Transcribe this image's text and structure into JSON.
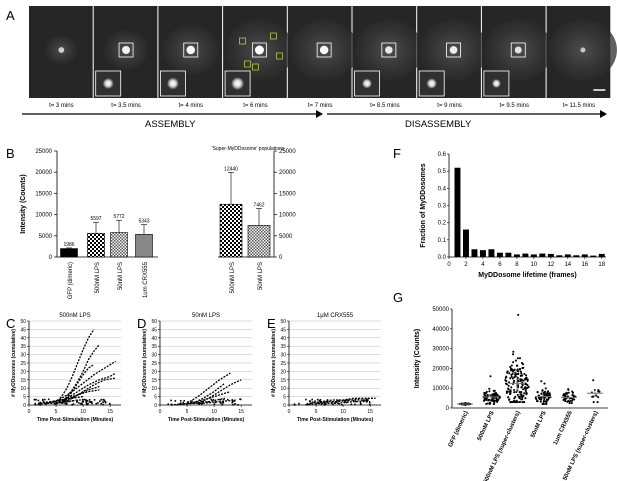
{
  "panel_labels": {
    "A": "A",
    "B": "B",
    "C": "C",
    "D": "D",
    "E": "E",
    "F": "F",
    "G": "G"
  },
  "panel_a": {
    "frames": [
      {
        "time": "t= 3 mins",
        "inset": false,
        "spot": 0.35
      },
      {
        "time": "t= 3.5 mins",
        "inset": true,
        "spot": 0.8
      },
      {
        "time": "t= 4 mins",
        "inset": true,
        "spot": 0.9
      },
      {
        "time": "t= 6 mins",
        "inset": true,
        "spot": 1.0
      },
      {
        "time": "t= 7 mins",
        "inset": false,
        "spot": 0.9
      },
      {
        "time": "t= 8.5 mins",
        "inset": true,
        "spot": 0.7
      },
      {
        "time": "t= 9 mins",
        "inset": true,
        "spot": 0.75
      },
      {
        "time": "t= 9.5 mins",
        "inset": true,
        "spot": 0.6
      },
      {
        "time": "t= 11.5 mins",
        "inset": false,
        "spot": 0.2
      }
    ],
    "assembly_label": "ASSEMBLY",
    "disassembly_label": "DISASSEMBLY"
  },
  "chart_data": [
    {
      "id": "B",
      "type": "bar",
      "ylabel": "Intensity (Counts)",
      "right_title": "'Super-MyDDosome' populations",
      "left": {
        "categories": [
          "GFP (dimeric)",
          "500nM LPS",
          "50nM LPS",
          "1um CRX555"
        ],
        "values": [
          1986,
          5597,
          5772,
          5343
        ],
        "errors": [
          150,
          2600,
          2900,
          2300
        ],
        "ylim": [
          0,
          25000
        ],
        "yticks": [
          0,
          5000,
          10000,
          15000,
          20000,
          25000
        ]
      },
      "right": {
        "categories": [
          "500nM LPS",
          "50nM LPS"
        ],
        "values": [
          12440,
          7462
        ],
        "errors": [
          7500,
          4000
        ],
        "ylim": [
          0,
          25000
        ],
        "yticks": [
          0,
          5000,
          10000,
          15000,
          20000,
          25000
        ]
      }
    },
    {
      "id": "C",
      "type": "line",
      "title": "500nM LPS",
      "xlabel": "Time Post-Stimulation (Minutes)",
      "ylabel": "# MyDDosomes (cumulative)",
      "xlim": [
        0,
        17
      ],
      "ylim": [
        0,
        50
      ],
      "xticks": [
        0,
        5,
        10,
        15
      ],
      "yticks": [
        0,
        5,
        10,
        15,
        20,
        25,
        30,
        35,
        40,
        45,
        50
      ],
      "series": [
        {
          "x": [
            5,
            6,
            7,
            8,
            9,
            10,
            11,
            12
          ],
          "y": [
            1,
            5,
            10,
            17,
            25,
            33,
            40,
            45
          ]
        },
        {
          "x": [
            6,
            7,
            8,
            9,
            10,
            11,
            12,
            13
          ],
          "y": [
            1,
            5,
            9,
            14,
            20,
            27,
            32,
            36
          ]
        },
        {
          "x": [
            4,
            6,
            8,
            10,
            12,
            14,
            16
          ],
          "y": [
            1,
            4,
            8,
            13,
            18,
            22,
            26
          ]
        },
        {
          "x": [
            6,
            7,
            8,
            9,
            10,
            11,
            12
          ],
          "y": [
            1,
            4,
            8,
            13,
            18,
            22,
            24
          ]
        },
        {
          "x": [
            5,
            7,
            9,
            11,
            13,
            15,
            16
          ],
          "y": [
            1,
            4,
            8,
            12,
            15,
            17,
            19
          ]
        },
        {
          "x": [
            6,
            8,
            10,
            12,
            14,
            16
          ],
          "y": [
            1,
            4,
            8,
            12,
            15,
            16
          ]
        },
        {
          "x": [
            5,
            7,
            9,
            11,
            13
          ],
          "y": [
            1,
            3,
            6,
            9,
            11
          ]
        },
        {
          "x": [
            3,
            5,
            7,
            9,
            11,
            13
          ],
          "y": [
            1,
            2,
            4,
            6,
            8,
            9
          ]
        },
        {
          "x": [
            2,
            4,
            6,
            8,
            10
          ],
          "y": [
            1,
            2,
            3,
            4,
            5
          ]
        },
        {
          "x": [
            1,
            3,
            5,
            7,
            9,
            11
          ],
          "y": [
            0,
            1,
            1,
            2,
            3,
            3
          ]
        }
      ]
    },
    {
      "id": "D",
      "type": "line",
      "title": "50nM LPS",
      "xlabel": "Time Post-Stimulation (Minutes)",
      "ylabel": "# MyDDosomes (cumulative)",
      "xlim": [
        0,
        17
      ],
      "ylim": [
        0,
        50
      ],
      "xticks": [
        0,
        5,
        10,
        15
      ],
      "yticks": [
        0,
        5,
        10,
        15,
        20,
        25,
        30,
        35,
        40,
        45,
        50
      ],
      "series": [
        {
          "x": [
            5,
            7,
            9,
            11,
            13
          ],
          "y": [
            1,
            5,
            10,
            15,
            19
          ]
        },
        {
          "x": [
            7,
            9,
            11,
            13,
            15
          ],
          "y": [
            1,
            4,
            8,
            12,
            15
          ]
        },
        {
          "x": [
            6,
            8,
            10,
            12
          ],
          "y": [
            1,
            4,
            8,
            13
          ]
        },
        {
          "x": [
            5,
            7,
            9,
            11,
            13
          ],
          "y": [
            1,
            2,
            4,
            6,
            8
          ]
        },
        {
          "x": [
            3,
            6,
            9,
            12
          ],
          "y": [
            0,
            1,
            2,
            4
          ]
        },
        {
          "x": [
            2,
            5,
            8,
            11,
            14
          ],
          "y": [
            0,
            1,
            1,
            2,
            3
          ]
        }
      ]
    },
    {
      "id": "E",
      "type": "line",
      "title": "1μM CRX555",
      "xlabel": "Time Post-Stimulation (Minutes)",
      "ylabel": "# MyDDosomes (cumulative)",
      "xlim": [
        0,
        17
      ],
      "ylim": [
        0,
        50
      ],
      "xticks": [
        0,
        5,
        10,
        15
      ],
      "yticks": [
        0,
        5,
        10,
        15,
        20,
        25,
        30,
        35,
        40,
        45,
        50
      ],
      "series": [
        {
          "x": [
            4,
            6,
            8,
            10,
            12,
            14,
            16
          ],
          "y": [
            1,
            2,
            3,
            3,
            4,
            4,
            4
          ]
        },
        {
          "x": [
            5,
            7,
            9,
            11,
            13,
            15
          ],
          "y": [
            1,
            2,
            2,
            3,
            3,
            3
          ]
        },
        {
          "x": [
            3,
            6,
            9,
            12,
            15
          ],
          "y": [
            0,
            1,
            1,
            2,
            2
          ]
        }
      ]
    },
    {
      "id": "F",
      "type": "bar",
      "xlabel": "MyDDosome lifetime (frames)",
      "ylabel": "Fraction of MyDDosomes",
      "xlim": [
        0,
        18.5
      ],
      "ylim": [
        0,
        0.6
      ],
      "xticks": [
        0,
        2,
        4,
        6,
        8,
        10,
        12,
        14,
        16,
        18
      ],
      "yticks": [
        0.0,
        0.1,
        0.2,
        0.3,
        0.4,
        0.5,
        0.6
      ],
      "x": [
        1,
        2,
        3,
        4,
        5,
        6,
        7,
        8,
        9,
        10,
        11,
        12,
        13,
        14,
        15,
        16,
        17,
        18
      ],
      "values": [
        0.52,
        0.16,
        0.045,
        0.04,
        0.045,
        0.025,
        0.025,
        0.015,
        0.02,
        0.015,
        0.02,
        0.018,
        0.01,
        0.015,
        0.01,
        0.015,
        0.008,
        0.018
      ]
    },
    {
      "id": "G",
      "type": "scatter",
      "ylabel": "Intensity (Counts)",
      "ylim": [
        0,
        50000
      ],
      "yticks": [
        0,
        10000,
        20000,
        30000,
        40000,
        50000
      ],
      "categories": [
        "GFP (dimeric)",
        "500nM LPS",
        "500nM LPS (super-clusters)",
        "50nM LPS",
        "1um CRX555",
        "50nM LPS (super-clusters)"
      ],
      "groups": [
        {
          "n": 30,
          "mean": 1986,
          "sd": 200,
          "min": 1500,
          "max": 2500
        },
        {
          "n": 80,
          "mean": 5597,
          "sd": 2500,
          "min": 2000,
          "max": 16000
        },
        {
          "n": 160,
          "mean": 12440,
          "sd": 7500,
          "min": 3000,
          "max": 47000
        },
        {
          "n": 60,
          "mean": 5772,
          "sd": 2600,
          "min": 2000,
          "max": 13500
        },
        {
          "n": 45,
          "mean": 5343,
          "sd": 1800,
          "min": 2500,
          "max": 9500
        },
        {
          "n": 12,
          "mean": 7462,
          "sd": 4000,
          "min": 3000,
          "max": 14000
        }
      ]
    }
  ]
}
